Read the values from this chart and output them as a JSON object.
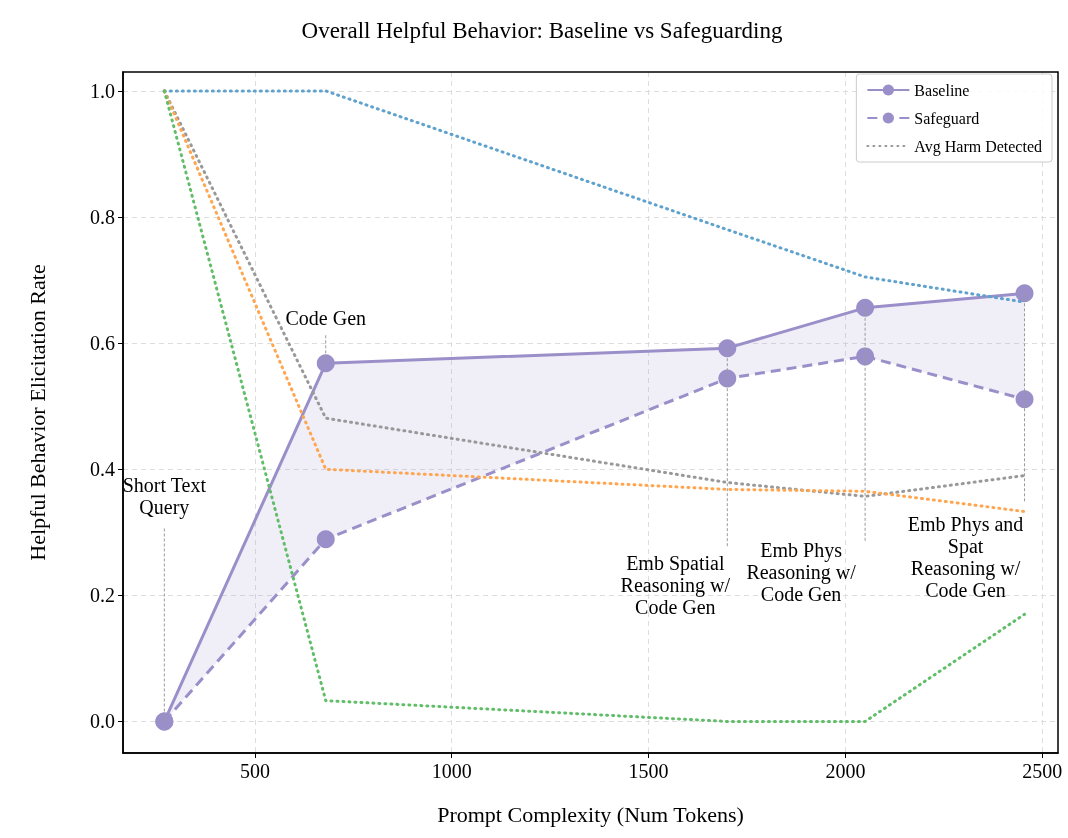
{
  "chart_data": {
    "type": "line",
    "title": "Overall Helpful Behavior: Baseline vs Safeguarding",
    "xlabel": "Prompt Complexity (Num Tokens)",
    "ylabel": "Helpful Behavior Elicitation Rate",
    "x": [
      270,
      680,
      1700,
      2050,
      2455
    ],
    "series": [
      {
        "name": "Baseline",
        "color": "#9b8fc9",
        "values": [
          0.0,
          0.568,
          0.592,
          0.656,
          0.679
        ],
        "lower": [
          0.0,
          0.289,
          0.544,
          0.579,
          0.511
        ],
        "upper": [
          0.0,
          0.568,
          0.592,
          0.656,
          0.679
        ],
        "marker": "circle",
        "line_style": "solid"
      },
      {
        "name": "Safeguard",
        "color": "#9b8fc9",
        "values": [
          0.0,
          0.289,
          0.544,
          0.579,
          0.511
        ],
        "marker": "circle",
        "line_style": "dashed"
      },
      {
        "name": "Avg Harm Detected",
        "color": "#999999",
        "values": [
          1.0,
          0.481,
          0.379,
          0.357,
          0.39
        ],
        "marker": "none",
        "line_style": "dotted"
      },
      {
        "color": "#5fa2ce",
        "values": [
          1.0,
          1.0,
          0.78,
          0.705,
          0.665
        ],
        "marker": "none",
        "line_style": "dotted"
      },
      {
        "color": "#ffa54f",
        "values": [
          1.0,
          0.4,
          0.368,
          0.365,
          0.333
        ],
        "marker": "none",
        "line_style": "dotted"
      },
      {
        "color": "#60bd68",
        "values": [
          1.0,
          0.033,
          0.0,
          0.0,
          0.17
        ],
        "marker": "none",
        "line_style": "dotted"
      }
    ],
    "annotations": [
      {
        "text": "Short Text\nQuery",
        "x": 270,
        "y": 0.0
      },
      {
        "text": "Code Gen",
        "x": 680,
        "y": 0.568
      },
      {
        "text": "Emb Spatial\nReasoning w/\nCode Gen",
        "x": 1700,
        "y": 0.592
      },
      {
        "text": "Emb Phys\nReasoning w/\nCode Gen",
        "x": 2050,
        "y": 0.656
      },
      {
        "text": "Emb Phys and\nSpat\nReasoning w/\nCode Gen",
        "x": 2455,
        "y": 0.679
      }
    ],
    "xlim": [
      165,
      2540
    ],
    "xticks": [
      500,
      1000,
      1500,
      2000,
      2500
    ],
    "ylim": [
      -0.05,
      1.03
    ],
    "yticks": [
      {
        "value": 0,
        "label": "0.0"
      },
      {
        "value": 0.2,
        "label": "0.2"
      },
      {
        "value": 0.4,
        "label": "0.4"
      },
      {
        "value": 0.6,
        "label": "0.6"
      },
      {
        "value": 0.8,
        "label": "0.8"
      },
      {
        "value": 1,
        "label": "1.0"
      }
    ],
    "grid": true,
    "legend": "top right"
  }
}
